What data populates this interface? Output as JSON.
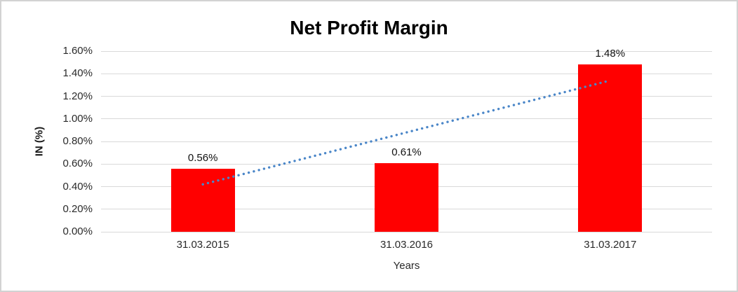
{
  "title": "Net Profit Margin",
  "chart_data": {
    "type": "bar",
    "title": "Net Profit Margin",
    "categories": [
      "31.03.2015",
      "31.03.2016",
      "31.03.2017"
    ],
    "values": [
      0.56,
      0.61,
      1.48
    ],
    "data_labels": [
      "0.56%",
      "0.61%",
      "1.48%"
    ],
    "xlabel": "Years",
    "ylabel": "IN (%)",
    "ylim": [
      0,
      1.6
    ],
    "ytick_step": 0.2,
    "ytick_labels": [
      "0.00%",
      "0.20%",
      "0.40%",
      "0.60%",
      "0.80%",
      "1.00%",
      "1.20%",
      "1.40%",
      "1.60%"
    ],
    "grid": true,
    "legend": "none",
    "colors": {
      "bar": "#ff0000",
      "gridline": "#d9d9d9",
      "trendline": "#4a86c8",
      "text": "#2a2a2a",
      "title_text": "#000000",
      "background": "#ffffff",
      "frame_border": "#d2d2d2"
    },
    "trendline": {
      "type": "linear",
      "style": "dotted",
      "start_value": 0.42,
      "end_value": 1.34
    }
  }
}
